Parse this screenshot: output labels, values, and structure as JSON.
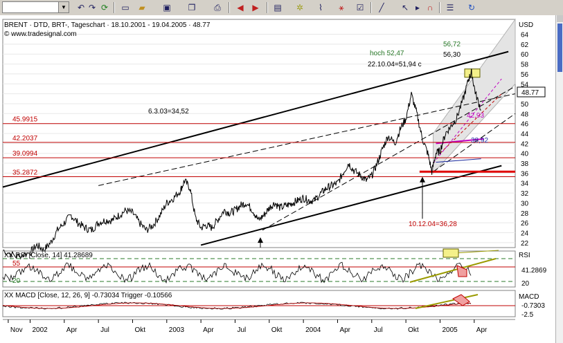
{
  "toolbar": {
    "combo_value": "",
    "buttons": [
      "undo-icon",
      "redo-icon",
      "refresh-icon",
      "new-icon",
      "open-icon",
      "save-icon",
      "copy-icon",
      "print-icon",
      "back-icon",
      "forward-icon",
      "window-icon",
      "tile-icon",
      "indicator-icon",
      "drawing-icon",
      "properties-icon",
      "line-tool-icon",
      "zoom-icon",
      "cursor-icon",
      "magnet-icon",
      "settings-icon",
      "reload-icon"
    ]
  },
  "chart_data": [
    {
      "type": "line",
      "title": "BRENT · DTD, BRT-, Tageschart · 18.10.2001 - 19.04.2005 · 48.77",
      "source": "© www.tradesignal.com",
      "ylabel": "USD",
      "ylim": [
        21,
        67
      ],
      "yticks": [
        22,
        24,
        26,
        28,
        30,
        32,
        34,
        36,
        38,
        40,
        42,
        44,
        46,
        48,
        50,
        52,
        54,
        56,
        58,
        60,
        62,
        64
      ],
      "xticks": [
        "Nov",
        "2002",
        "Apr",
        "Jul",
        "Okt",
        "2003",
        "Apr",
        "Jul",
        "Okt",
        "2004",
        "Apr",
        "Jul",
        "Okt",
        "2005",
        "Apr"
      ],
      "last_value": "48.77",
      "series": [
        {
          "values": [
            [
              2001.8,
              20.5
            ],
            [
              2001.9,
              19.2
            ],
            [
              2002.0,
              20.0
            ],
            [
              2002.05,
              21.5
            ],
            [
              2002.1,
              20.5
            ],
            [
              2002.15,
              22.0
            ],
            [
              2002.2,
              24.5
            ],
            [
              2002.25,
              26.0
            ],
            [
              2002.3,
              27.5
            ],
            [
              2002.35,
              26.0
            ],
            [
              2002.4,
              25.0
            ],
            [
              2002.45,
              24.5
            ],
            [
              2002.5,
              26.0
            ],
            [
              2002.55,
              26.5
            ],
            [
              2002.6,
              26.5
            ],
            [
              2002.65,
              27.5
            ],
            [
              2002.7,
              28.5
            ],
            [
              2002.75,
              28.0
            ],
            [
              2002.8,
              26.0
            ],
            [
              2002.85,
              24.5
            ],
            [
              2002.9,
              25.5
            ],
            [
              2002.95,
              27.5
            ],
            [
              2003.0,
              30.0
            ],
            [
              2003.05,
              31.0
            ],
            [
              2003.1,
              32.5
            ],
            [
              2003.13,
              34.5
            ],
            [
              2003.17,
              33.0
            ],
            [
              2003.21,
              27.0
            ],
            [
              2003.25,
              25.0
            ],
            [
              2003.29,
              25.5
            ],
            [
              2003.33,
              25.0
            ],
            [
              2003.37,
              26.5
            ],
            [
              2003.42,
              28.5
            ],
            [
              2003.46,
              28.0
            ],
            [
              2003.5,
              28.5
            ],
            [
              2003.54,
              29.5
            ],
            [
              2003.58,
              30.0
            ],
            [
              2003.63,
              28.5
            ],
            [
              2003.67,
              26.5
            ],
            [
              2003.71,
              27.5
            ],
            [
              2003.75,
              29.0
            ],
            [
              2003.79,
              30.0
            ],
            [
              2003.83,
              29.0
            ],
            [
              2003.88,
              29.5
            ],
            [
              2003.92,
              30.0
            ],
            [
              2003.96,
              30.5
            ],
            [
              2004.0,
              31.0
            ],
            [
              2004.04,
              30.5
            ],
            [
              2004.08,
              30.5
            ],
            [
              2004.13,
              32.0
            ],
            [
              2004.17,
              33.0
            ],
            [
              2004.21,
              33.5
            ],
            [
              2004.25,
              34.0
            ],
            [
              2004.29,
              36.0
            ],
            [
              2004.33,
              38.0
            ],
            [
              2004.37,
              36.5
            ],
            [
              2004.42,
              35.5
            ],
            [
              2004.46,
              34.5
            ],
            [
              2004.5,
              35.5
            ],
            [
              2004.54,
              38.0
            ],
            [
              2004.58,
              41.0
            ],
            [
              2004.62,
              43.5
            ],
            [
              2004.67,
              42.0
            ],
            [
              2004.71,
              45.0
            ],
            [
              2004.75,
              47.0
            ],
            [
              2004.79,
              51.9
            ],
            [
              2004.83,
              48.0
            ],
            [
              2004.87,
              43.0
            ],
            [
              2004.91,
              40.0
            ],
            [
              2004.94,
              36.3
            ],
            [
              2004.97,
              40.0
            ],
            [
              2005.0,
              40.5
            ],
            [
              2005.04,
              44.0
            ],
            [
              2005.08,
              45.5
            ],
            [
              2005.12,
              47.0
            ],
            [
              2005.17,
              51.0
            ],
            [
              2005.21,
              55.0
            ],
            [
              2005.23,
              56.3
            ],
            [
              2005.26,
              52.0
            ],
            [
              2005.3,
              48.77
            ]
          ]
        }
      ],
      "h_levels": [
        {
          "value": 45.9915,
          "label": "45.9915",
          "color": "#c00000"
        },
        {
          "value": 42.2037,
          "label": "42.2037",
          "color": "#c00000"
        },
        {
          "value": 39.0994,
          "label": "39.0994",
          "color": "#c00000"
        },
        {
          "value": 35.2872,
          "label": "35.2872",
          "color": "#c00000"
        }
      ],
      "annotations": [
        {
          "text": "hoch 52,47",
          "color": "#2a7a2a"
        },
        {
          "text": "22.10.04=51,94 c",
          "color": "#000000"
        },
        {
          "text": "56,72",
          "color": "#2a7a2a"
        },
        {
          "text": "56,30",
          "color": "#000000"
        },
        {
          "text": "6.3.03=34,52",
          "color": "#000000"
        },
        {
          "text": "42,93",
          "color": "#c000c0"
        },
        {
          "text": "38,92",
          "color": "#2030a0"
        },
        {
          "text": "10.12.04=36,28",
          "color": "#c00000"
        }
      ]
    },
    {
      "type": "line",
      "title": "XX RSI [Close, 14] 41.28689",
      "ylabel": "RSI",
      "ylim": [
        15,
        85
      ],
      "yticks": [
        20,
        80
      ],
      "levels": [
        "55",
        "20"
      ],
      "last_value": "41.2869"
    },
    {
      "type": "line",
      "title": "XX MACD [Close, 12, 26, 9] -0.73034 Trigger -0.10566",
      "ylabel": "MACD",
      "yticks": [
        "-2.5"
      ],
      "last_value": "-0.7303"
    }
  ]
}
